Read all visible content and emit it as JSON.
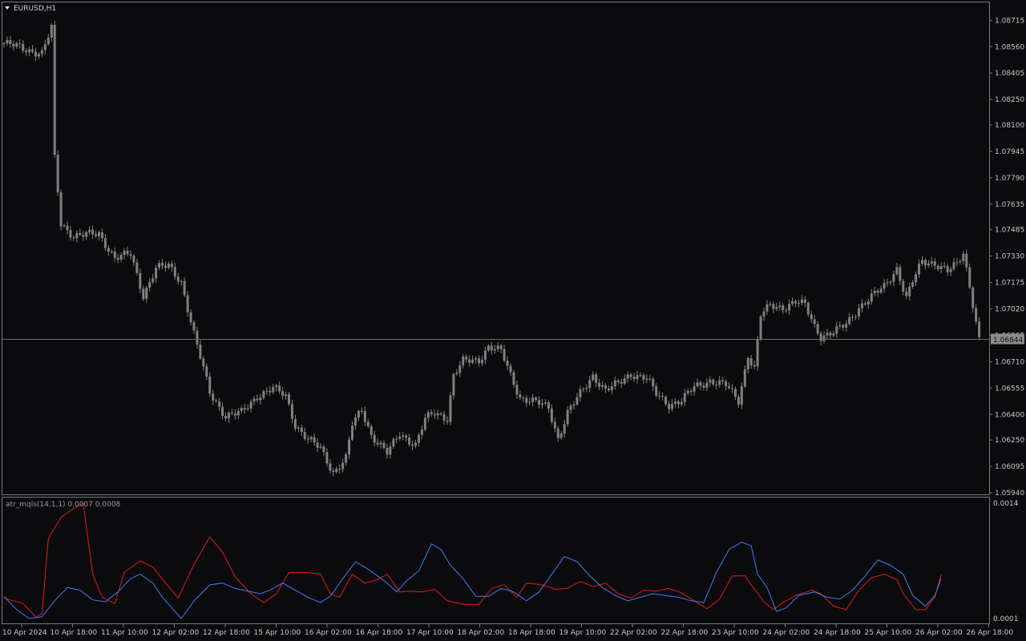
{
  "window": {
    "symbol_title": "EURUSD,H1",
    "indicator_title": "atr_mqls(14,1,1)",
    "indicator_values": "0.0007 0.0008",
    "current_price_label": "1.06844"
  },
  "colors": {
    "background": "#0b0b0e",
    "candle": "#808080",
    "frame": "#7a7a7a",
    "atr_fast": "#e31a1a",
    "atr_slow": "#3f7df5",
    "price_line": "#6a6a6a",
    "current_price_bg": "#8c8c8c"
  },
  "chart_data": [
    {
      "type": "candlestick",
      "title": "EURUSD,H1",
      "price_axis_labels": [
        "1.08715",
        "1.08560",
        "1.08405",
        "1.08250",
        "1.08100",
        "1.07945",
        "1.07790",
        "1.07635",
        "1.07485",
        "1.07330",
        "1.07175",
        "1.07020",
        "1.06865",
        "1.06710",
        "1.06555",
        "1.06400",
        "1.06250",
        "1.06095",
        "1.05940"
      ],
      "ylim": [
        1.0594,
        1.0874
      ],
      "current_price": 1.06844,
      "time_axis_labels": [
        "10 Apr 2024",
        "10 Apr 18:00",
        "11 Apr 10:00",
        "12 Apr 02:00",
        "12 Apr 18:00",
        "15 Apr 10:00",
        "16 Apr 02:00",
        "16 Apr 18:00",
        "17 Apr 10:00",
        "18 Apr 02:00",
        "18 Apr 18:00",
        "19 Apr 10:00",
        "22 Apr 02:00",
        "22 Apr 18:00",
        "23 Apr 10:00",
        "24 Apr 02:00",
        "24 Apr 18:00",
        "25 Apr 10:00",
        "26 Apr 02:00",
        "26 Apr 18:00"
      ],
      "close_path": [
        [
          0,
          1.0858
        ],
        [
          12,
          1.0852
        ],
        [
          15,
          1.0867
        ],
        [
          16,
          1.079
        ],
        [
          18,
          1.0752
        ],
        [
          22,
          1.0745
        ],
        [
          30,
          1.0746
        ],
        [
          35,
          1.0732
        ],
        [
          40,
          1.0734
        ],
        [
          44,
          1.071
        ],
        [
          48,
          1.0726
        ],
        [
          52,
          1.0727
        ],
        [
          56,
          1.0718
        ],
        [
          60,
          1.0687
        ],
        [
          65,
          1.0653
        ],
        [
          70,
          1.0639
        ],
        [
          75,
          1.0641
        ],
        [
          80,
          1.0651
        ],
        [
          85,
          1.0655
        ],
        [
          89,
          1.0651
        ],
        [
          92,
          1.0634
        ],
        [
          96,
          1.0625
        ],
        [
          100,
          1.062
        ],
        [
          104,
          1.0606
        ],
        [
          108,
          1.0614
        ],
        [
          110,
          1.0634
        ],
        [
          113,
          1.0643
        ],
        [
          116,
          1.0628
        ],
        [
          121,
          1.0617
        ],
        [
          125,
          1.0629
        ],
        [
          130,
          1.0622
        ],
        [
          133,
          1.0637
        ],
        [
          136,
          1.0641
        ],
        [
          140,
          1.0638
        ],
        [
          142,
          1.0663
        ],
        [
          145,
          1.0671
        ],
        [
          150,
          1.0672
        ],
        [
          153,
          1.068
        ],
        [
          157,
          1.0677
        ],
        [
          160,
          1.0663
        ],
        [
          163,
          1.065
        ],
        [
          168,
          1.0647
        ],
        [
          172,
          1.0644
        ],
        [
          175,
          1.0626
        ],
        [
          178,
          1.0641
        ],
        [
          182,
          1.0652
        ],
        [
          186,
          1.0663
        ],
        [
          190,
          1.0654
        ],
        [
          194,
          1.0658
        ],
        [
          198,
          1.0664
        ],
        [
          203,
          1.0661
        ],
        [
          206,
          1.0652
        ],
        [
          210,
          1.0646
        ],
        [
          214,
          1.0648
        ],
        [
          218,
          1.0656
        ],
        [
          223,
          1.066
        ],
        [
          228,
          1.0657
        ],
        [
          232,
          1.0648
        ],
        [
          235,
          1.0675
        ],
        [
          237,
          1.0667
        ],
        [
          239,
          1.0698
        ],
        [
          242,
          1.0704
        ],
        [
          246,
          1.0703
        ],
        [
          250,
          1.0706
        ],
        [
          253,
          1.0704
        ],
        [
          256,
          1.0692
        ],
        [
          258,
          1.0686
        ],
        [
          262,
          1.0688
        ],
        [
          266,
          1.0693
        ],
        [
          270,
          1.0703
        ],
        [
          274,
          1.0709
        ],
        [
          278,
          1.0715
        ],
        [
          282,
          1.0726
        ],
        [
          285,
          1.0708
        ],
        [
          287,
          1.0718
        ],
        [
          290,
          1.073
        ],
        [
          294,
          1.0729
        ],
        [
          298,
          1.0724
        ],
        [
          301,
          1.0728
        ],
        [
          303,
          1.0735
        ],
        [
          305,
          1.0716
        ],
        [
          308,
          1.0684
        ]
      ]
    },
    {
      "type": "line",
      "title": "atr_mqls(14,1,1)",
      "axis_labels": [
        "0.0014",
        "0.0001"
      ],
      "ylim": [
        0.0001,
        0.0014
      ],
      "series": [
        {
          "name": "0.0007",
          "color": "#e31a1a",
          "points": [
            [
              0,
              0.00033
            ],
            [
              6,
              0.00027
            ],
            [
              10,
              0.00012
            ],
            [
              12,
              0.00015
            ],
            [
              14,
              0.001
            ],
            [
              18,
              0.00124
            ],
            [
              22,
              0.00134
            ],
            [
              25,
              0.0014
            ],
            [
              28,
              0.0006
            ],
            [
              31,
              0.00034
            ],
            [
              35,
              0.00027
            ],
            [
              38,
              0.00062
            ],
            [
              43,
              0.00075
            ],
            [
              47,
              0.00068
            ],
            [
              51,
              0.0005
            ],
            [
              55,
              0.00033
            ],
            [
              60,
              0.00071
            ],
            [
              65,
              0.00102
            ],
            [
              69,
              0.00085
            ],
            [
              73,
              0.00057
            ],
            [
              78,
              0.00038
            ],
            [
              82,
              0.00028
            ],
            [
              86,
              0.00038
            ],
            [
              90,
              0.00062
            ],
            [
              95,
              0.00062
            ],
            [
              100,
              0.0006
            ],
            [
              103,
              0.00038
            ],
            [
              106,
              0.00034
            ],
            [
              110,
              0.0006
            ],
            [
              114,
              0.0005
            ],
            [
              118,
              0.00054
            ],
            [
              121,
              0.0006
            ],
            [
              125,
              0.0004
            ],
            [
              128,
              0.00041
            ],
            [
              132,
              0.0004
            ],
            [
              136,
              0.00043
            ],
            [
              140,
              0.0003
            ],
            [
              145,
              0.00026
            ],
            [
              150,
              0.00026
            ],
            [
              154,
              0.00044
            ],
            [
              158,
              0.00048
            ],
            [
              162,
              0.00034
            ],
            [
              165,
              0.0005
            ],
            [
              170,
              0.00048
            ],
            [
              174,
              0.00043
            ],
            [
              178,
              0.00044
            ],
            [
              182,
              0.00052
            ],
            [
              186,
              0.00046
            ],
            [
              190,
              0.0005
            ],
            [
              194,
              0.00038
            ],
            [
              198,
              0.00033
            ],
            [
              202,
              0.00042
            ],
            [
              206,
              0.00041
            ],
            [
              210,
              0.00044
            ],
            [
              214,
              0.00039
            ],
            [
              218,
              0.0003
            ],
            [
              222,
              0.00021
            ],
            [
              226,
              0.00032
            ],
            [
              230,
              0.00058
            ],
            [
              234,
              0.00058
            ],
            [
              236,
              0.00048
            ],
            [
              240,
              0.00029
            ],
            [
              243,
              0.0002
            ],
            [
              246,
              0.00028
            ],
            [
              250,
              0.00036
            ],
            [
              255,
              0.00042
            ],
            [
              258,
              0.00038
            ],
            [
              262,
              0.00024
            ],
            [
              266,
              0.0002
            ],
            [
              270,
              0.00042
            ],
            [
              274,
              0.00056
            ],
            [
              278,
              0.0006
            ],
            [
              282,
              0.00054
            ],
            [
              284,
              0.00038
            ],
            [
              288,
              0.0002
            ],
            [
              291,
              0.0002
            ],
            [
              294,
              0.00034
            ],
            [
              296,
              0.0006
            ]
          ]
        },
        {
          "name": "0.0008",
          "color": "#3f7df5",
          "points": [
            [
              0,
              0.00035
            ],
            [
              4,
              0.0002
            ],
            [
              8,
              0.0001
            ],
            [
              12,
              0.00012
            ],
            [
              16,
              0.0003
            ],
            [
              20,
              0.00045
            ],
            [
              24,
              0.00042
            ],
            [
              28,
              0.00031
            ],
            [
              32,
              0.00029
            ],
            [
              36,
              0.0004
            ],
            [
              40,
              0.00055
            ],
            [
              43,
              0.0006
            ],
            [
              47,
              0.0005
            ],
            [
              50,
              0.00034
            ],
            [
              53,
              0.00022
            ],
            [
              56,
              0.0001
            ],
            [
              60,
              0.0003
            ],
            [
              65,
              0.00048
            ],
            [
              69,
              0.0005
            ],
            [
              73,
              0.00044
            ],
            [
              77,
              0.00041
            ],
            [
              81,
              0.00038
            ],
            [
              84,
              0.00042
            ],
            [
              88,
              0.0005
            ],
            [
              92,
              0.00042
            ],
            [
              96,
              0.00034
            ],
            [
              100,
              0.00028
            ],
            [
              103,
              0.00035
            ],
            [
              107,
              0.00055
            ],
            [
              111,
              0.00074
            ],
            [
              114,
              0.00068
            ],
            [
              118,
              0.00058
            ],
            [
              121,
              0.0005
            ],
            [
              124,
              0.0004
            ],
            [
              127,
              0.00052
            ],
            [
              131,
              0.00064
            ],
            [
              135,
              0.00094
            ],
            [
              138,
              0.00088
            ],
            [
              141,
              0.0007
            ],
            [
              145,
              0.00055
            ],
            [
              149,
              0.00035
            ],
            [
              153,
              0.00035
            ],
            [
              157,
              0.00044
            ],
            [
              161,
              0.0004
            ],
            [
              165,
              0.0003
            ],
            [
              169,
              0.0004
            ],
            [
              173,
              0.0006
            ],
            [
              177,
              0.0008
            ],
            [
              181,
              0.00074
            ],
            [
              185,
              0.00058
            ],
            [
              189,
              0.00045
            ],
            [
              193,
              0.00036
            ],
            [
              197,
              0.0003
            ],
            [
              201,
              0.00034
            ],
            [
              205,
              0.00038
            ],
            [
              209,
              0.00036
            ],
            [
              213,
              0.00034
            ],
            [
              217,
              0.0003
            ],
            [
              221,
              0.00028
            ],
            [
              225,
              0.00062
            ],
            [
              229,
              0.00088
            ],
            [
              233,
              0.00096
            ],
            [
              236,
              0.00092
            ],
            [
              238,
              0.0006
            ],
            [
              241,
              0.00045
            ],
            [
              244,
              0.00018
            ],
            [
              247,
              0.00022
            ],
            [
              251,
              0.00036
            ],
            [
              256,
              0.0004
            ],
            [
              260,
              0.00034
            ],
            [
              264,
              0.00032
            ],
            [
              268,
              0.00042
            ],
            [
              272,
              0.00058
            ],
            [
              276,
              0.00076
            ],
            [
              280,
              0.0007
            ],
            [
              284,
              0.0006
            ],
            [
              287,
              0.00036
            ],
            [
              291,
              0.00024
            ],
            [
              294,
              0.00036
            ],
            [
              296,
              0.00055
            ]
          ]
        }
      ]
    }
  ]
}
